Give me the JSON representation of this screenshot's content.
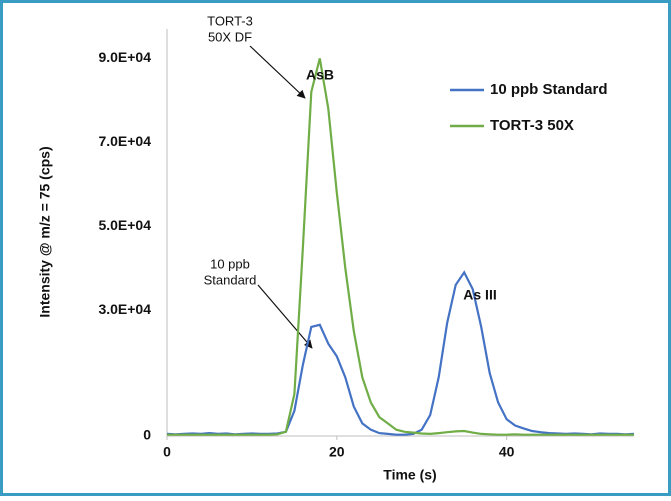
{
  "chart_data": {
    "type": "line",
    "x_label": "Time (s)",
    "y_label": "Intensity @ m/z = 75 (cps)",
    "x": [
      0,
      1,
      2,
      3,
      4,
      5,
      6,
      7,
      8,
      9,
      10,
      11,
      12,
      13,
      14,
      15,
      16,
      17,
      18,
      19,
      20,
      21,
      22,
      23,
      24,
      25,
      26,
      27,
      28,
      29,
      30,
      31,
      32,
      33,
      34,
      35,
      36,
      37,
      38,
      39,
      40,
      41,
      42,
      43,
      44,
      45,
      46,
      47,
      48,
      49,
      50,
      51,
      52,
      53,
      54,
      55
    ],
    "series": [
      {
        "name": "10 ppb Standard",
        "color": "#4472c4",
        "values": [
          500,
          400,
          500,
          600,
          500,
          700,
          500,
          600,
          400,
          500,
          600,
          500,
          500,
          600,
          1000,
          6000,
          17000,
          26000,
          26500,
          22000,
          19000,
          14000,
          7000,
          3000,
          1500,
          700,
          500,
          300,
          300,
          500,
          1500,
          5000,
          14000,
          27000,
          36000,
          39000,
          35000,
          26000,
          15000,
          8000,
          4000,
          2500,
          1800,
          1200,
          900,
          700,
          600,
          500,
          600,
          500,
          400,
          600,
          500,
          500,
          400,
          500
        ]
      },
      {
        "name": "TORT-3 50X",
        "color": "#70ad47",
        "values": [
          300,
          300,
          300,
          300,
          300,
          300,
          300,
          300,
          300,
          300,
          300,
          300,
          300,
          400,
          1000,
          10000,
          45000,
          82000,
          90000,
          78000,
          58000,
          40000,
          25000,
          14000,
          8000,
          4500,
          3000,
          1500,
          1000,
          800,
          600,
          500,
          700,
          900,
          1100,
          1200,
          800,
          500,
          400,
          300,
          300,
          400,
          300,
          300,
          300,
          300,
          300,
          300,
          300,
          300,
          300,
          300,
          300,
          300,
          300,
          300
        ]
      }
    ],
    "xlim": [
      0,
      55
    ],
    "xticks": [
      0,
      20,
      40
    ],
    "ylim": [
      0,
      97000
    ],
    "yticks": [
      0,
      {
        "value": 30000,
        "label": "3.0E+04"
      },
      {
        "value": 50000,
        "label": "5.0E+04"
      },
      {
        "value": 70000,
        "label": "7.0E+04"
      },
      {
        "value": 90000,
        "label": "9.0E+04"
      }
    ],
    "legend": "upper right",
    "annotations": [
      {
        "text": [
          "TORT-3",
          "50X DF"
        ]
      },
      {
        "text": [
          "10 ppb",
          "Standard"
        ]
      },
      {
        "text": [
          "AsB"
        ]
      },
      {
        "text": [
          "As III"
        ]
      }
    ]
  }
}
